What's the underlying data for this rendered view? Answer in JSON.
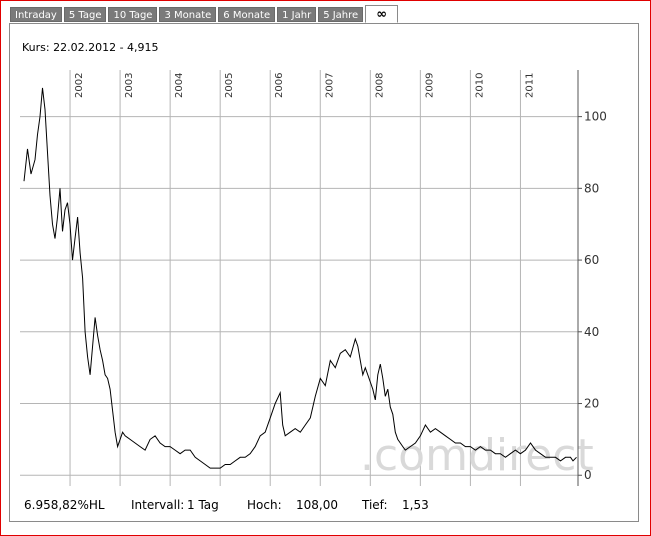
{
  "tabs": [
    {
      "label": "Intraday",
      "active": false
    },
    {
      "label": "5 Tage",
      "active": false
    },
    {
      "label": "10 Tage",
      "active": false
    },
    {
      "label": "3 Monate",
      "active": false
    },
    {
      "label": "6 Monate",
      "active": false
    },
    {
      "label": "1 Jahr",
      "active": false
    },
    {
      "label": "5 Jahre",
      "active": false
    },
    {
      "label": "∞",
      "active": true
    }
  ],
  "kurs_line": "Kurs: 22.02.2012 - 4,915",
  "footer": {
    "change": "6.958,82%HL",
    "interval_label": "Intervall:",
    "interval_value": "1 Tag",
    "high_label": "Hoch:",
    "high_value": "108,00",
    "low_label": "Tief:",
    "low_value": "1,53"
  },
  "watermark": ".comdirect",
  "colors": {
    "border": "#e00000",
    "tab_bg": "#7a7a7a",
    "grid": "#b5b5b5",
    "line": "#000000"
  },
  "chart_data": {
    "type": "line",
    "title": "",
    "xlabel": "",
    "ylabel": "",
    "x_tick_labels": [
      "2002",
      "2003",
      "2004",
      "2005",
      "2006",
      "2007",
      "2008",
      "2009",
      "2010",
      "2011"
    ],
    "y_tick_labels": [
      "0",
      "20",
      "40",
      "60",
      "80",
      "100"
    ],
    "ylim": [
      -3,
      113
    ],
    "xlim": [
      2001.0,
      2012.15
    ],
    "grid": true,
    "series": [
      {
        "x": [
          2001.08,
          2001.15,
          2001.22,
          2001.3,
          2001.35,
          2001.4,
          2001.45,
          2001.5,
          2001.55,
          2001.6,
          2001.65,
          2001.7,
          2001.75,
          2001.8,
          2001.85,
          2001.9,
          2001.95,
          2002.0,
          2002.05,
          2002.1,
          2002.15,
          2002.2,
          2002.25,
          2002.3,
          2002.35,
          2002.4,
          2002.45,
          2002.5,
          2002.55,
          2002.6,
          2002.65,
          2002.7,
          2002.75,
          2002.8,
          2002.85,
          2002.9,
          2002.95,
          2003.0,
          2003.05,
          2003.1,
          2003.2,
          2003.3,
          2003.4,
          2003.5,
          2003.6,
          2003.7,
          2003.8,
          2003.9,
          2004.0,
          2004.1,
          2004.2,
          2004.3,
          2004.4,
          2004.5,
          2004.6,
          2004.7,
          2004.8,
          2004.9,
          2005.0,
          2005.1,
          2005.2,
          2005.3,
          2005.4,
          2005.5,
          2005.6,
          2005.7,
          2005.8,
          2005.9,
          2006.0,
          2006.1,
          2006.2,
          2006.25,
          2006.3,
          2006.4,
          2006.5,
          2006.6,
          2006.7,
          2006.8,
          2006.9,
          2007.0,
          2007.1,
          2007.2,
          2007.3,
          2007.4,
          2007.5,
          2007.6,
          2007.7,
          2007.75,
          2007.8,
          2007.85,
          2007.9,
          2008.0,
          2008.05,
          2008.1,
          2008.15,
          2008.2,
          2008.25,
          2008.3,
          2008.35,
          2008.4,
          2008.45,
          2008.5,
          2008.55,
          2008.6,
          2008.65,
          2008.7,
          2008.8,
          2008.9,
          2009.0,
          2009.1,
          2009.2,
          2009.3,
          2009.4,
          2009.5,
          2009.6,
          2009.7,
          2009.8,
          2009.9,
          2010.0,
          2010.1,
          2010.2,
          2010.3,
          2010.4,
          2010.5,
          2010.6,
          2010.7,
          2010.8,
          2010.9,
          2011.0,
          2011.1,
          2011.2,
          2011.3,
          2011.4,
          2011.5,
          2011.6,
          2011.7,
          2011.8,
          2011.9,
          2012.0,
          2012.05,
          2012.12
        ],
        "y": [
          82,
          91,
          84,
          88,
          95,
          100,
          108,
          102,
          90,
          78,
          70,
          66,
          72,
          80,
          68,
          74,
          76,
          70,
          60,
          66,
          72,
          62,
          55,
          40,
          33,
          28,
          36,
          44,
          39,
          35,
          32,
          28,
          27,
          24,
          18,
          12,
          8,
          10,
          12,
          11,
          10,
          9,
          8,
          7,
          10,
          11,
          9,
          8,
          8,
          7,
          6,
          7,
          7,
          5,
          4,
          3,
          2,
          2,
          2,
          3,
          3,
          4,
          5,
          5,
          6,
          8,
          11,
          12,
          16,
          20,
          23,
          14,
          11,
          12,
          13,
          12,
          14,
          16,
          22,
          27,
          25,
          32,
          30,
          34,
          35,
          33,
          38,
          36,
          32,
          28,
          30,
          26,
          24,
          21,
          28,
          31,
          27,
          22,
          24,
          19,
          17,
          12,
          10,
          9,
          8,
          7,
          8,
          9,
          11,
          14,
          12,
          13,
          12,
          11,
          10,
          9,
          9,
          8,
          8,
          7,
          8,
          7,
          7,
          6,
          6,
          5,
          6,
          7,
          6,
          7,
          9,
          7,
          6,
          5,
          5,
          5,
          4,
          5,
          5,
          4,
          5
        ]
      }
    ]
  }
}
